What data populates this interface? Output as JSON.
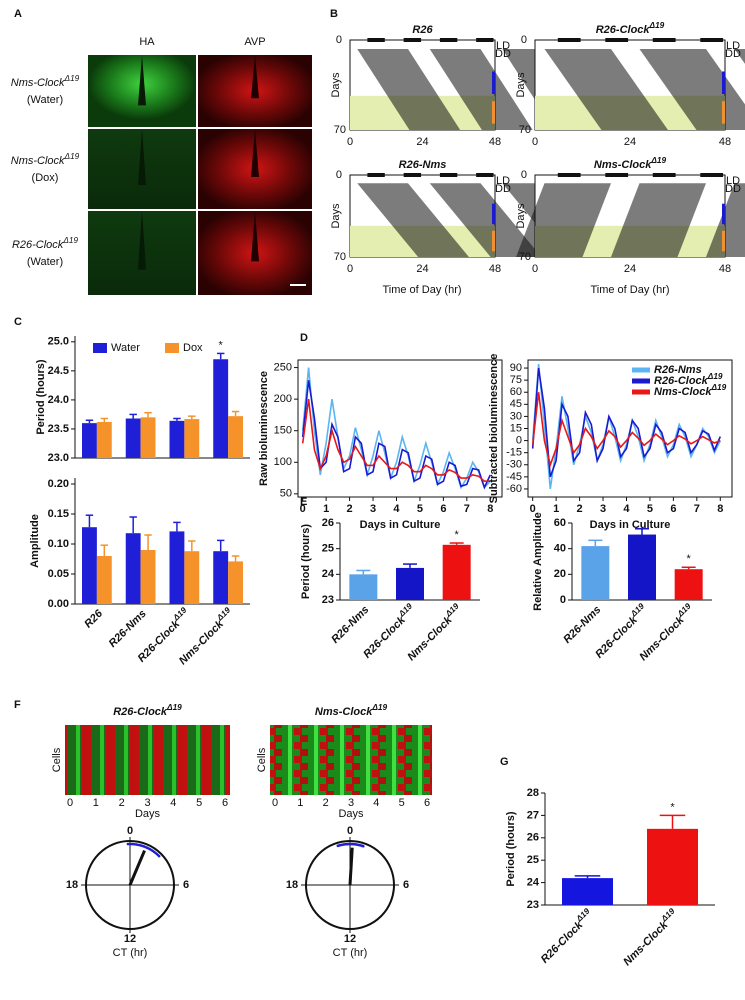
{
  "panel_labels": {
    "a": "A",
    "b": "B",
    "c": "C",
    "d": "D",
    "e": "E",
    "f": "F",
    "g": "G"
  },
  "panel_a": {
    "channels": [
      "HA",
      "AVP"
    ],
    "rows": [
      {
        "genotype": "Nms-ClockΔ19",
        "treatment": "(Water)"
      },
      {
        "genotype": "Nms-ClockΔ19",
        "treatment": "(Dox)"
      },
      {
        "genotype": "R26-ClockΔ19",
        "treatment": "(Water)"
      }
    ]
  },
  "panel_b": {
    "titles": [
      "R26",
      "R26-ClockΔ19",
      "R26-Nms",
      "Nms-ClockΔ19"
    ],
    "y_label": "Days",
    "y_ticks": [
      0,
      70
    ],
    "x_ticks": [
      0,
      24,
      48
    ],
    "x_label": "Time of Day (hr)",
    "ld": "LD",
    "dd": "DD"
  },
  "chart_data": [
    {
      "type": "bar",
      "y_label": "Period (hours)",
      "ylim": [
        23,
        25.1
      ],
      "yticks": [
        {
          "value": 23,
          "label": "23.0"
        },
        23.5,
        {
          "value": 24,
          "label": "24.0"
        },
        24.5,
        {
          "value": 25,
          "label": "25.0"
        }
      ],
      "series": [
        {
          "name": "Water",
          "color": "#1f1fd8",
          "values": [
            23.6,
            23.68,
            23.64,
            24.7
          ],
          "errors": [
            0.05,
            0.07,
            0.04,
            0.1
          ]
        },
        {
          "name": "Dox",
          "color": "#f5922a",
          "values": [
            23.62,
            23.7,
            23.67,
            23.72
          ],
          "errors": [
            0.06,
            0.08,
            0.05,
            0.08
          ]
        }
      ],
      "annotation": "*"
    },
    {
      "type": "bar",
      "y_label": "Amplitude",
      "ylim": [
        0,
        0.21
      ],
      "yticks": [
        {
          "value": 0,
          "label": "0.00"
        },
        0.05,
        {
          "value": 0.1,
          "label": "0.10"
        },
        0.15,
        {
          "value": 0.2,
          "label": "0.20"
        }
      ],
      "categories": [
        "R26",
        "R26-Nms",
        "R26-ClockΔ19",
        "Nms-ClockΔ19"
      ],
      "series": [
        {
          "color": "#1f1fd8",
          "values": [
            0.128,
            0.118,
            0.121,
            0.088
          ],
          "errors": [
            0.02,
            0.027,
            0.015,
            0.018
          ]
        },
        {
          "color": "#f5922a",
          "values": [
            0.08,
            0.09,
            0.088,
            0.071
          ],
          "errors": [
            0.018,
            0.025,
            0.017,
            0.009
          ]
        }
      ]
    },
    {
      "type": "line",
      "y_label": "Raw bioluminescence",
      "x_label": "Days in Culture",
      "xlim": [
        -0.2,
        8.5
      ],
      "ylim": [
        45,
        262
      ],
      "xticks": [
        0,
        1,
        2,
        3,
        4,
        5,
        6,
        7,
        8
      ],
      "yticks": [
        50,
        100,
        150,
        200,
        250
      ],
      "x": [
        0,
        0.25,
        0.5,
        0.75,
        1,
        1.25,
        1.5,
        1.75,
        2,
        2.25,
        2.5,
        2.75,
        3,
        3.25,
        3.5,
        3.75,
        4,
        4.25,
        4.5,
        4.75,
        5,
        5.25,
        5.5,
        5.75,
        6,
        6.25,
        6.5,
        6.75,
        7,
        7.25,
        7.5,
        7.75,
        8
      ],
      "series": [
        {
          "color": "#5bb5f0",
          "values": [
            150,
            250,
            150,
            80,
            130,
            200,
            140,
            90,
            110,
            155,
            120,
            80,
            110,
            150,
            115,
            75,
            100,
            140,
            110,
            70,
            95,
            130,
            100,
            65,
            85,
            115,
            90,
            60,
            75,
            100,
            85,
            60,
            70
          ]
        },
        {
          "color": "#1a1ad0",
          "values": [
            140,
            230,
            170,
            90,
            100,
            160,
            140,
            85,
            90,
            140,
            130,
            80,
            85,
            130,
            125,
            75,
            80,
            120,
            115,
            70,
            75,
            110,
            105,
            65,
            70,
            100,
            95,
            62,
            65,
            90,
            88,
            60,
            80
          ]
        },
        {
          "color": "#e81818",
          "values": [
            130,
            200,
            120,
            90,
            110,
            150,
            120,
            100,
            105,
            125,
            110,
            95,
            95,
            110,
            100,
            90,
            90,
            100,
            95,
            85,
            85,
            95,
            90,
            80,
            80,
            88,
            84,
            75,
            75,
            80,
            78,
            70,
            70
          ]
        }
      ]
    },
    {
      "type": "line",
      "y_label": "Subtracted bioluminescence",
      "x_label": "Days in Culture",
      "xlim": [
        -0.2,
        8.5
      ],
      "ylim": [
        -70,
        100
      ],
      "xticks": [
        0,
        1,
        2,
        3,
        4,
        5,
        6,
        7,
        8
      ],
      "yticks": [
        -60,
        -45,
        -30,
        -15,
        0,
        15,
        30,
        45,
        60,
        75,
        90
      ],
      "x": [
        0,
        0.25,
        0.5,
        0.75,
        1,
        1.25,
        1.5,
        1.75,
        2,
        2.25,
        2.5,
        2.75,
        3,
        3.25,
        3.5,
        3.75,
        4,
        4.25,
        4.5,
        4.75,
        5,
        5.25,
        5.5,
        5.75,
        6,
        6.25,
        6.5,
        6.75,
        7,
        7.25,
        7.5,
        7.75,
        8
      ],
      "series": [
        {
          "name": "R26-Nms",
          "color": "#5bb5f0",
          "values": [
            0,
            95,
            20,
            -60,
            -10,
            55,
            15,
            -30,
            -5,
            30,
            10,
            -25,
            -5,
            30,
            5,
            -25,
            -5,
            25,
            5,
            -25,
            -5,
            25,
            5,
            -20,
            -5,
            20,
            5,
            -20,
            -5,
            15,
            5,
            -15,
            0
          ]
        },
        {
          "name": "R26-ClockΔ19",
          "color": "#1a1ad0",
          "values": [
            -10,
            90,
            40,
            -45,
            -25,
            45,
            30,
            -25,
            -15,
            35,
            20,
            -25,
            -10,
            30,
            15,
            -20,
            -10,
            25,
            15,
            -20,
            -10,
            20,
            10,
            -15,
            -10,
            15,
            10,
            -15,
            -5,
            12,
            8,
            -12,
            5
          ]
        },
        {
          "name": "Nms-ClockΔ19",
          "color": "#e81818",
          "values": [
            -5,
            60,
            0,
            -30,
            -10,
            25,
            5,
            -15,
            -5,
            15,
            5,
            -10,
            0,
            12,
            5,
            -8,
            0,
            10,
            3,
            -6,
            0,
            8,
            2,
            -5,
            0,
            6,
            2,
            -4,
            0,
            5,
            1,
            -3,
            0
          ]
        }
      ]
    },
    {
      "type": "bar",
      "y_label": "Period (hours)",
      "ylim": [
        23,
        26
      ],
      "yticks": [
        23,
        24,
        25,
        26
      ],
      "categories": [
        "R26-Nms",
        "R26-ClockΔ19",
        "Nms-ClockΔ19"
      ],
      "series": [
        {
          "colors": [
            "#5aa3e8",
            "#1515c8",
            "#ee1111"
          ],
          "values": [
            24.0,
            24.25,
            25.15
          ],
          "errors": [
            0.15,
            0.15,
            0.07
          ]
        }
      ],
      "annotation": "*",
      "annotation_category": "Nms-ClockΔ19"
    },
    {
      "type": "bar",
      "y_label": "Relative Amplitude",
      "ylim": [
        0,
        60
      ],
      "yticks": [
        0,
        20,
        40,
        60
      ],
      "categories": [
        "R26-Nms",
        "R26-ClockΔ19",
        "Nms-ClockΔ19"
      ],
      "series": [
        {
          "colors": [
            "#5aa3e8",
            "#1515c8",
            "#ee1111"
          ],
          "values": [
            42,
            51,
            24
          ],
          "errors": [
            4.5,
            4.5,
            1.5
          ]
        }
      ],
      "annotation": "*",
      "annotation_category": "Nms-ClockΔ19"
    },
    {
      "type": "bar",
      "y_label": "Period (hours)",
      "ylim": [
        23,
        28
      ],
      "yticks": [
        23,
        24,
        25,
        26,
        27,
        28
      ],
      "categories": [
        "R26-ClockΔ19",
        "Nms-ClockΔ19"
      ],
      "series": [
        {
          "colors": [
            "#1515e0",
            "#ee1111"
          ],
          "values": [
            24.2,
            26.4
          ],
          "errors": [
            0.1,
            0.6
          ]
        }
      ],
      "annotation": "*",
      "annotation_category": "Nms-ClockΔ19"
    }
  ],
  "panel_f": {
    "titles": [
      "R26-ClockΔ19",
      "Nms-ClockΔ19"
    ],
    "y_label": "Cells",
    "x_label": "Days",
    "x_ticks": [
      0,
      1,
      2,
      3,
      4,
      5,
      6
    ],
    "ct_labels": [
      "0",
      "6",
      "12",
      "18"
    ],
    "ct_title": "CT (hr)"
  }
}
